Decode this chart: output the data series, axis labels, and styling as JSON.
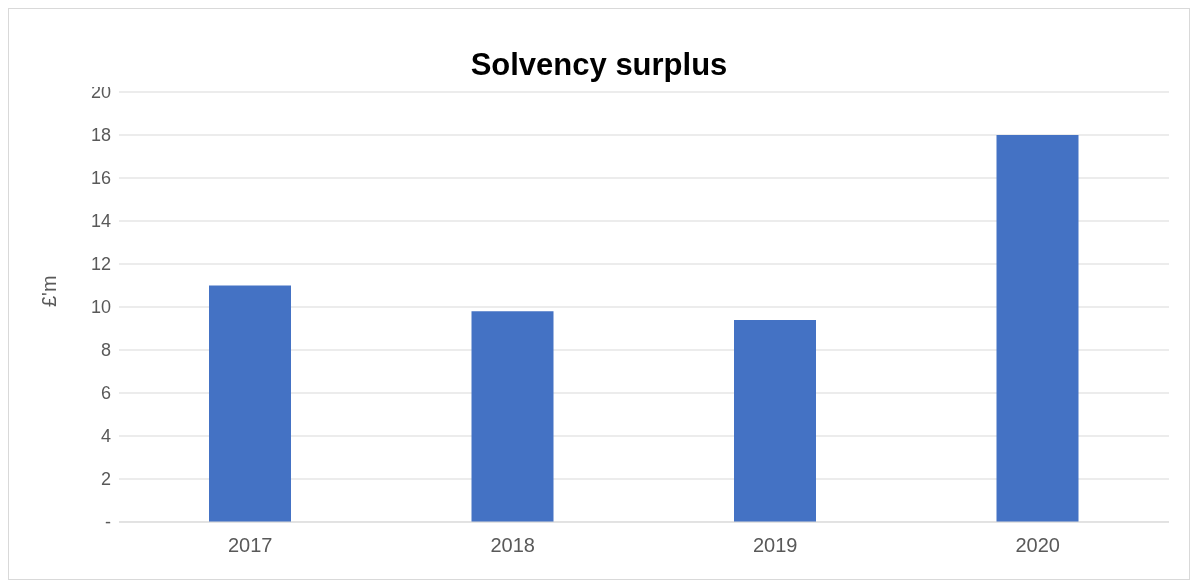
{
  "chart_data": {
    "type": "bar",
    "title": "Solvency surplus",
    "ylabel": "£'m",
    "categories": [
      "2017",
      "2018",
      "2019",
      "2020"
    ],
    "values": [
      11.0,
      9.8,
      9.4,
      18.0
    ],
    "color": "#4472c4",
    "ylim": [
      0,
      20
    ],
    "yticks": [
      {
        "value": 0,
        "label": "-"
      },
      2,
      4,
      6,
      8,
      10,
      12,
      14,
      16,
      18,
      20
    ],
    "grid": "y"
  }
}
